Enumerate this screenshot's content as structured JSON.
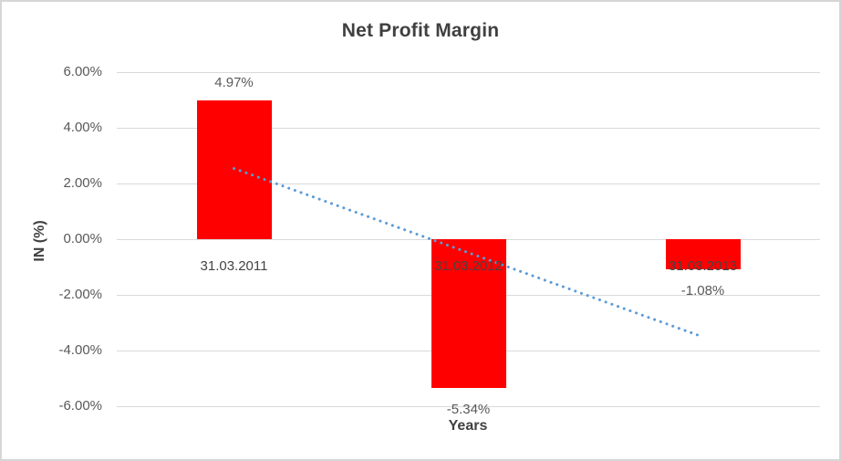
{
  "chart_data": {
    "type": "bar",
    "title": "Net Profit Margin",
    "xlabel": "Years",
    "ylabel": "IN (%)",
    "categories": [
      "31.03.2011",
      "31.03.2012",
      "31.03.2013"
    ],
    "values": [
      4.97,
      -5.34,
      -1.08
    ],
    "data_labels": [
      "4.97%",
      "-5.34%",
      "-1.08%"
    ],
    "y_tick_labels": [
      "6.00%",
      "4.00%",
      "2.00%",
      "0.00%",
      "-2.00%",
      "-4.00%",
      "-6.00%"
    ],
    "y_tick_values": [
      6,
      4,
      2,
      0,
      -2,
      -4,
      -6
    ],
    "ylim": [
      -6,
      6
    ],
    "grid": true,
    "legend": "none",
    "bar_color": "#FF0000",
    "gridline_color": "#d9d9d9",
    "trendline": {
      "type": "linear",
      "style": "dotted",
      "color": "#5B9BD5",
      "start_value": 2.54,
      "end_value": -3.51
    }
  }
}
